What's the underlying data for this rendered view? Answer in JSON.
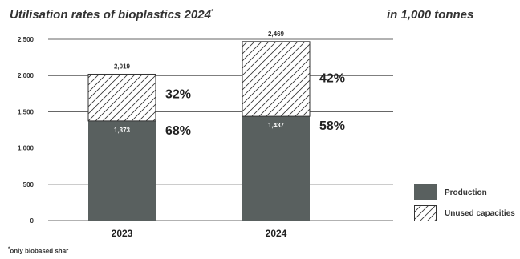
{
  "header": {
    "title": "Utilisation rates of bioplastics 2024",
    "title_mark": "*",
    "unit": "in 1,000 tonnes"
  },
  "footnote": {
    "mark": "*",
    "text": "only biobased shar"
  },
  "colors": {
    "production": "#59605f",
    "hatch_stroke": "#333333",
    "grid": "#333333"
  },
  "chart_data": {
    "type": "bar",
    "stacked": true,
    "categories": [
      "2023",
      "2024"
    ],
    "series": [
      {
        "name": "Production",
        "values": [
          1373,
          1437
        ],
        "percent_labels": [
          "68%",
          "58%"
        ],
        "fill": "solid"
      },
      {
        "name": "Unused capacities",
        "values": [
          646,
          1032
        ],
        "percent_labels": [
          "32%",
          "42%"
        ],
        "fill": "hatched"
      }
    ],
    "production_labels": [
      "1,373",
      "1,437"
    ],
    "total_labels": [
      "2,019",
      "2,469"
    ],
    "totals": [
      2019,
      2469
    ],
    "ylim": [
      0,
      2500
    ],
    "yticks": [
      0,
      500,
      1000,
      1500,
      2000,
      2500
    ],
    "ytick_labels": [
      "0",
      "500",
      "1,000",
      "1,500",
      "2,000",
      "2,500"
    ],
    "grid": true,
    "legend_position": "bottom-right"
  }
}
